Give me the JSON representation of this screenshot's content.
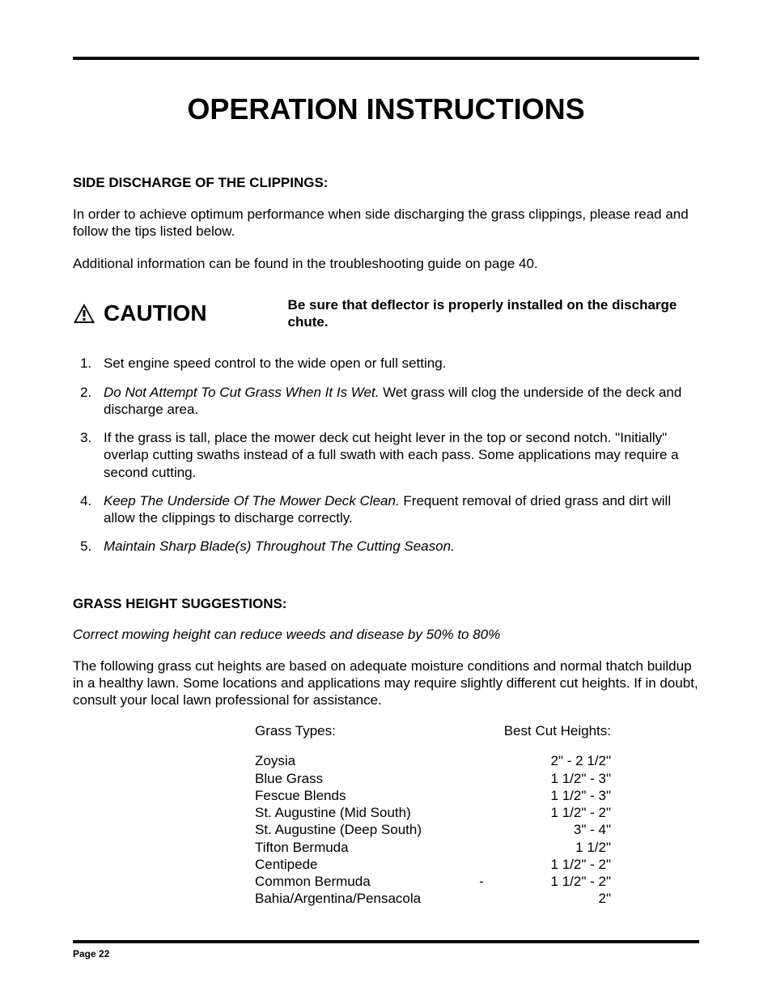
{
  "title": "OPERATION INSTRUCTIONS",
  "section1": {
    "heading": "SIDE DISCHARGE OF THE CLIPPINGS:",
    "p1": "In order to achieve optimum performance when side discharging the grass clippings, please read and follow the tips listed below.",
    "p2": "Additional information can be found in the troubleshooting guide on page 40."
  },
  "caution": {
    "label": "CAUTION",
    "text": "Be sure that deflector is properly installed on the discharge chute."
  },
  "steps": {
    "s1": "Set engine speed control to the wide open or full setting.",
    "s2a": "Do Not Attempt To Cut Grass When It Is Wet.",
    "s2b": " Wet grass will clog the underside of the deck and discharge area.",
    "s3": "If the grass is tall, place the mower deck cut height lever in the top or second notch. \"Initially\" overlap cutting swaths instead of a full swath with each pass. Some applications may require a second cutting.",
    "s4a": "Keep The Underside Of The Mower Deck Clean.",
    "s4b": " Frequent removal of dried grass and dirt will allow the clippings to discharge correctly.",
    "s5": "Maintain Sharp Blade(s) Throughout The Cutting Season."
  },
  "section2": {
    "heading": "GRASS HEIGHT SUGGESTIONS:",
    "sub": "Correct mowing height can reduce weeds and disease by 50% to 80%",
    "p1": "The following grass cut heights are based on adequate moisture conditions and normal thatch buildup in a healthy lawn. Some locations and applications may require slightly different cut heights. If in doubt, consult your local lawn professional for assistance."
  },
  "table": {
    "h1": "Grass Types:",
    "h2": "Best Cut Heights:",
    "rows": [
      {
        "type": "Zoysia",
        "height": "2\" - 2 1/2\"",
        "dash": ""
      },
      {
        "type": "Blue Grass",
        "height": "1 1/2\" - 3\"",
        "dash": ""
      },
      {
        "type": "Fescue Blends",
        "height": "1 1/2\" - 3\"",
        "dash": ""
      },
      {
        "type": "St. Augustine (Mid South)",
        "height": "1 1/2\" - 2\"",
        "dash": ""
      },
      {
        "type": "St. Augustine (Deep South)",
        "height": "3\" - 4\"",
        "dash": ""
      },
      {
        "type": "Tifton Bermuda",
        "height": "1 1/2\"",
        "dash": ""
      },
      {
        "type": "Centipede",
        "height": "1 1/2\" - 2\"",
        "dash": ""
      },
      {
        "type": "Common Bermuda",
        "height": "1 1/2\" - 2\"",
        "dash": "-"
      },
      {
        "type": "Bahia/Argentina/Pensacola",
        "height": "2\"",
        "dash": ""
      }
    ]
  },
  "footer": {
    "page": "Page 22"
  }
}
